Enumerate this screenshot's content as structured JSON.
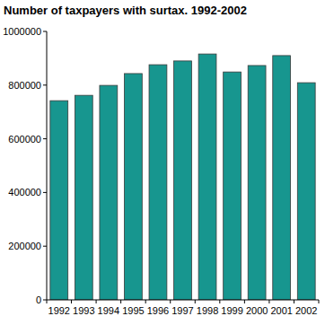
{
  "chart_data": {
    "type": "bar",
    "title": "Number of taxpayers with surtax. 1992-2002",
    "categories": [
      "1992",
      "1993",
      "1994",
      "1995",
      "1996",
      "1997",
      "1998",
      "1999",
      "2000",
      "2001",
      "2002"
    ],
    "values": [
      742000,
      762000,
      799000,
      843000,
      876000,
      890000,
      916000,
      849000,
      873000,
      910000,
      809000
    ],
    "color": "#17968f",
    "ylim": [
      0,
      1000000
    ],
    "yticks": [
      0,
      200000,
      400000,
      600000,
      800000,
      1000000
    ],
    "grid": false
  }
}
